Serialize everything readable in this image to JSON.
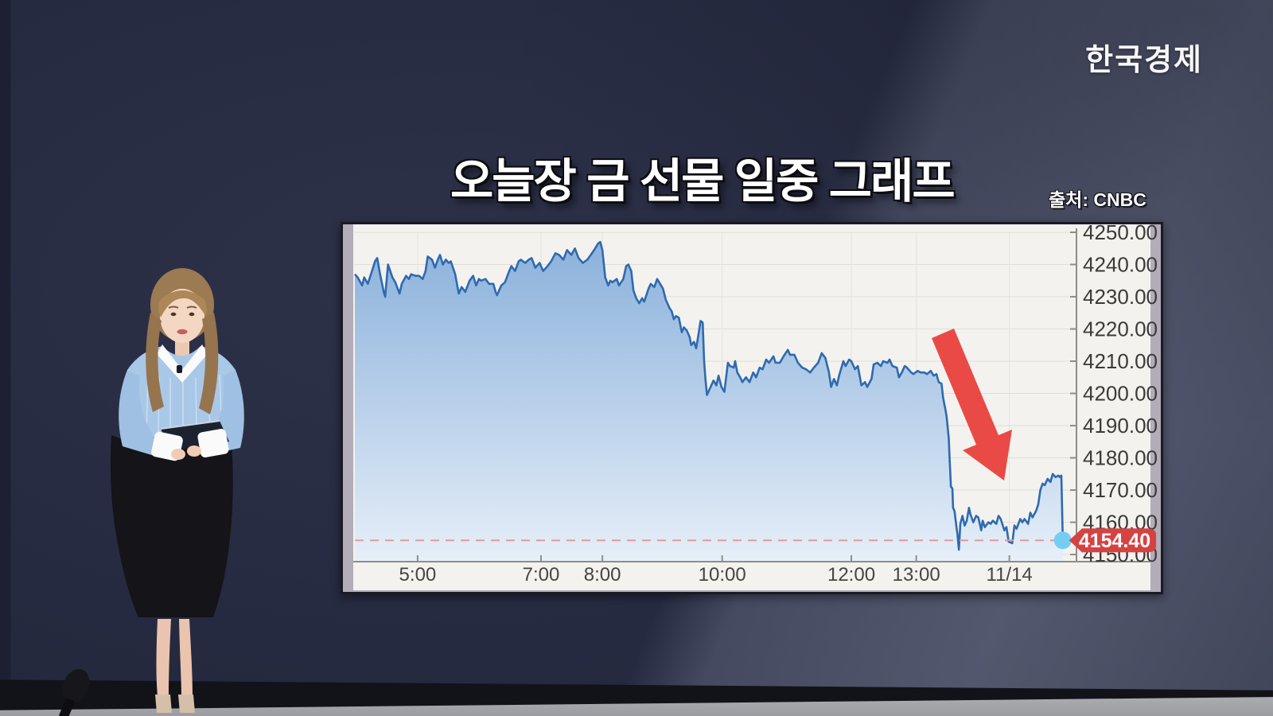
{
  "broadcast": {
    "channel_logo": "한국경제",
    "headline": "오늘장 금 선물 일중 그래프",
    "source_label": "출처: CNBC"
  },
  "presenter": {
    "description": "news presenter in blue striped shirt with white collar and cuffs, black pencil skirt, holding dark papers",
    "prop": "floor microphone"
  },
  "chart_data": {
    "type": "area",
    "title": "오늘장 금 선물 일중 그래프",
    "source": "CNBC",
    "legend": "none",
    "grid": true,
    "y_axis": {
      "side": "right",
      "min": 4150,
      "max": 4250,
      "step": 10,
      "tick_labels": [
        "4250.00",
        "4240.00",
        "4230.00",
        "4220.00",
        "4210.00",
        "4200.00",
        "4190.00",
        "4180.00",
        "4170.00",
        "4160.00",
        "4150.00"
      ]
    },
    "x_axis": {
      "unit": "time (fraction of plot width)",
      "ticks": [
        {
          "label": "5:00",
          "pos": 0.087
        },
        {
          "label": "7:00",
          "pos": 0.258
        },
        {
          "label": "8:00",
          "pos": 0.343
        },
        {
          "label": "10:00",
          "pos": 0.509
        },
        {
          "label": "12:00",
          "pos": 0.688
        },
        {
          "label": "13:00",
          "pos": 0.778
        },
        {
          "label": "11/14",
          "pos": 0.907
        }
      ]
    },
    "last_price": 4154.4,
    "last_price_label": "4154.40",
    "dashed_reference_price": 4154.4,
    "annotations": {
      "arrow": "large red arrow pointing down-right at the late-session sell-off"
    },
    "colors": {
      "line": "#2e6ab0",
      "fill_top": "#86aeda",
      "fill_bottom": "#e6eff9",
      "dashed_line": "#e59a9a",
      "price_tag": "#d64242",
      "last_dot": "#74cef1",
      "arrow": "#e8403c",
      "plot_bg": "#f4f2ee",
      "backdrop": "#272b40"
    },
    "series": [
      {
        "name": "gold-futures-price",
        "points": [
          [
            0.0,
            4237
          ],
          [
            0.004,
            4236
          ],
          [
            0.01,
            4233.5
          ],
          [
            0.013,
            4236
          ],
          [
            0.018,
            4234
          ],
          [
            0.023,
            4237.5
          ],
          [
            0.028,
            4241
          ],
          [
            0.031,
            4242
          ],
          [
            0.035,
            4237
          ],
          [
            0.04,
            4231.5
          ],
          [
            0.042,
            4230
          ],
          [
            0.046,
            4240
          ],
          [
            0.052,
            4236
          ],
          [
            0.056,
            4234.5
          ],
          [
            0.062,
            4231
          ],
          [
            0.065,
            4234
          ],
          [
            0.071,
            4236.5
          ],
          [
            0.075,
            4235.5
          ],
          [
            0.078,
            4237
          ],
          [
            0.084,
            4236.5
          ],
          [
            0.089,
            4236.5
          ],
          [
            0.094,
            4235.5
          ],
          [
            0.098,
            4238
          ],
          [
            0.101,
            4242.5
          ],
          [
            0.107,
            4241.5
          ],
          [
            0.111,
            4239
          ],
          [
            0.115,
            4241.5
          ],
          [
            0.118,
            4243
          ],
          [
            0.122,
            4240
          ],
          [
            0.126,
            4241.5
          ],
          [
            0.13,
            4240.5
          ],
          [
            0.133,
            4241
          ],
          [
            0.139,
            4237
          ],
          [
            0.144,
            4231
          ],
          [
            0.148,
            4233
          ],
          [
            0.153,
            4231.5
          ],
          [
            0.159,
            4235
          ],
          [
            0.164,
            4236.5
          ],
          [
            0.168,
            4233.5
          ],
          [
            0.172,
            4235.5
          ],
          [
            0.175,
            4235
          ],
          [
            0.181,
            4235.5
          ],
          [
            0.186,
            4234
          ],
          [
            0.192,
            4234
          ],
          [
            0.195,
            4231.5
          ],
          [
            0.197,
            4230.5
          ],
          [
            0.203,
            4233.5
          ],
          [
            0.208,
            4234.5
          ],
          [
            0.214,
            4238
          ],
          [
            0.217,
            4239.5
          ],
          [
            0.222,
            4238
          ],
          [
            0.227,
            4241
          ],
          [
            0.23,
            4241.5
          ],
          [
            0.236,
            4240.5
          ],
          [
            0.241,
            4241.5
          ],
          [
            0.245,
            4242
          ],
          [
            0.25,
            4239
          ],
          [
            0.256,
            4240.5
          ],
          [
            0.261,
            4238
          ],
          [
            0.267,
            4239.5
          ],
          [
            0.272,
            4241
          ],
          [
            0.278,
            4243.5
          ],
          [
            0.283,
            4243
          ],
          [
            0.289,
            4241.5
          ],
          [
            0.294,
            4244.5
          ],
          [
            0.3,
            4243
          ],
          [
            0.305,
            4245
          ],
          [
            0.31,
            4242
          ],
          [
            0.316,
            4240.5
          ],
          [
            0.322,
            4241.5
          ],
          [
            0.327,
            4243
          ],
          [
            0.333,
            4245
          ],
          [
            0.337,
            4246.5
          ],
          [
            0.34,
            4247
          ],
          [
            0.343,
            4244.5
          ],
          [
            0.347,
            4236
          ],
          [
            0.351,
            4233.5
          ],
          [
            0.354,
            4235
          ],
          [
            0.357,
            4234.5
          ],
          [
            0.363,
            4235.5
          ],
          [
            0.366,
            4233.5
          ],
          [
            0.372,
            4235.5
          ],
          [
            0.376,
            4239.5
          ],
          [
            0.379,
            4240
          ],
          [
            0.383,
            4238
          ],
          [
            0.386,
            4232
          ],
          [
            0.39,
            4229.5
          ],
          [
            0.394,
            4228
          ],
          [
            0.398,
            4229.5
          ],
          [
            0.401,
            4228.5
          ],
          [
            0.407,
            4232.5
          ],
          [
            0.41,
            4234
          ],
          [
            0.415,
            4233
          ],
          [
            0.419,
            4235.5
          ],
          [
            0.423,
            4234
          ],
          [
            0.427,
            4232.5
          ],
          [
            0.431,
            4229
          ],
          [
            0.436,
            4226.5
          ],
          [
            0.439,
            4225.5
          ],
          [
            0.442,
            4223
          ],
          [
            0.445,
            4224
          ],
          [
            0.449,
            4223.5
          ],
          [
            0.453,
            4219
          ],
          [
            0.456,
            4220.5
          ],
          [
            0.46,
            4219.5
          ],
          [
            0.464,
            4217.5
          ],
          [
            0.466,
            4215
          ],
          [
            0.47,
            4216
          ],
          [
            0.473,
            4214
          ],
          [
            0.476,
            4218
          ],
          [
            0.479,
            4222.5
          ],
          [
            0.482,
            4222
          ],
          [
            0.484,
            4210
          ],
          [
            0.486,
            4204
          ],
          [
            0.488,
            4199.5
          ],
          [
            0.492,
            4201.5
          ],
          [
            0.497,
            4204
          ],
          [
            0.501,
            4202.5
          ],
          [
            0.504,
            4205.5
          ],
          [
            0.508,
            4202
          ],
          [
            0.512,
            4200.5
          ],
          [
            0.517,
            4209.5
          ],
          [
            0.52,
            4208.5
          ],
          [
            0.525,
            4208
          ],
          [
            0.527,
            4210
          ],
          [
            0.53,
            4206.5
          ],
          [
            0.534,
            4205
          ],
          [
            0.537,
            4203.5
          ],
          [
            0.542,
            4205
          ],
          [
            0.547,
            4203.5
          ],
          [
            0.552,
            4206.5
          ],
          [
            0.556,
            4205
          ],
          [
            0.561,
            4208
          ],
          [
            0.565,
            4207.5
          ],
          [
            0.57,
            4210.5
          ],
          [
            0.574,
            4209.5
          ],
          [
            0.58,
            4211.5
          ],
          [
            0.583,
            4209.5
          ],
          [
            0.589,
            4209.5
          ],
          [
            0.594,
            4211.5
          ],
          [
            0.6,
            4213.5
          ],
          [
            0.603,
            4212
          ],
          [
            0.609,
            4212
          ],
          [
            0.614,
            4209.5
          ],
          [
            0.62,
            4208
          ],
          [
            0.625,
            4207.5
          ],
          [
            0.631,
            4206.5
          ],
          [
            0.636,
            4208
          ],
          [
            0.642,
            4209.5
          ],
          [
            0.647,
            4212.5
          ],
          [
            0.652,
            4211
          ],
          [
            0.657,
            4206.5
          ],
          [
            0.66,
            4202
          ],
          [
            0.664,
            4204.5
          ],
          [
            0.668,
            4202.5
          ],
          [
            0.671,
            4205.5
          ],
          [
            0.677,
            4210
          ],
          [
            0.68,
            4208.5
          ],
          [
            0.685,
            4210.5
          ],
          [
            0.688,
            4210
          ],
          [
            0.693,
            4207.5
          ],
          [
            0.697,
            4208.5
          ],
          [
            0.702,
            4202.5
          ],
          [
            0.707,
            4203.5
          ],
          [
            0.71,
            4202
          ],
          [
            0.716,
            4204.5
          ],
          [
            0.719,
            4209
          ],
          [
            0.724,
            4209.5
          ],
          [
            0.729,
            4208.5
          ],
          [
            0.732,
            4210
          ],
          [
            0.738,
            4209.5
          ],
          [
            0.741,
            4210.5
          ],
          [
            0.745,
            4208.5
          ],
          [
            0.751,
            4208
          ],
          [
            0.754,
            4205
          ],
          [
            0.758,
            4206.5
          ],
          [
            0.762,
            4208.5
          ],
          [
            0.765,
            4208
          ],
          [
            0.771,
            4206.5
          ],
          [
            0.774,
            4206
          ],
          [
            0.78,
            4207
          ],
          [
            0.784,
            4206.5
          ],
          [
            0.789,
            4206.5
          ],
          [
            0.793,
            4206
          ],
          [
            0.798,
            4207
          ],
          [
            0.802,
            4205.5
          ],
          [
            0.806,
            4206
          ],
          [
            0.809,
            4203.5
          ],
          [
            0.813,
            4203
          ],
          [
            0.815,
            4199
          ],
          [
            0.817,
            4196.5
          ],
          [
            0.818,
            4195.5
          ],
          [
            0.82,
            4193
          ],
          [
            0.823,
            4186
          ],
          [
            0.824,
            4180.5
          ],
          [
            0.826,
            4171
          ],
          [
            0.828,
            4170.5
          ],
          [
            0.829,
            4164.5
          ],
          [
            0.831,
            4163.5
          ],
          [
            0.834,
            4158
          ],
          [
            0.835,
            4156.5
          ],
          [
            0.837,
            4151.5
          ],
          [
            0.839,
            4159.5
          ],
          [
            0.842,
            4162
          ],
          [
            0.845,
            4159
          ],
          [
            0.848,
            4160.5
          ],
          [
            0.851,
            4164.5
          ],
          [
            0.853,
            4162.5
          ],
          [
            0.857,
            4160
          ],
          [
            0.861,
            4162
          ],
          [
            0.864,
            4161.5
          ],
          [
            0.868,
            4157.5
          ],
          [
            0.87,
            4160.5
          ],
          [
            0.873,
            4158.5
          ],
          [
            0.878,
            4160
          ],
          [
            0.881,
            4159.5
          ],
          [
            0.884,
            4160.5
          ],
          [
            0.889,
            4159.5
          ],
          [
            0.892,
            4162
          ],
          [
            0.895,
            4161
          ],
          [
            0.9,
            4157.5
          ],
          [
            0.903,
            4158.5
          ],
          [
            0.906,
            4154
          ],
          [
            0.911,
            4153.5
          ],
          [
            0.914,
            4159
          ],
          [
            0.917,
            4158
          ],
          [
            0.922,
            4161
          ],
          [
            0.925,
            4160
          ],
          [
            0.928,
            4161
          ],
          [
            0.933,
            4159.5
          ],
          [
            0.936,
            4163
          ],
          [
            0.939,
            4161.5
          ],
          [
            0.944,
            4163.5
          ],
          [
            0.947,
            4165.5
          ],
          [
            0.95,
            4170
          ],
          [
            0.953,
            4172
          ],
          [
            0.956,
            4171.5
          ],
          [
            0.96,
            4173.5
          ],
          [
            0.964,
            4172.5
          ],
          [
            0.967,
            4175
          ],
          [
            0.971,
            4174
          ],
          [
            0.975,
            4174.5
          ],
          [
            0.977,
            4174
          ],
          [
            0.979,
            4174.5
          ],
          [
            0.981,
            4154.4
          ]
        ]
      }
    ]
  }
}
